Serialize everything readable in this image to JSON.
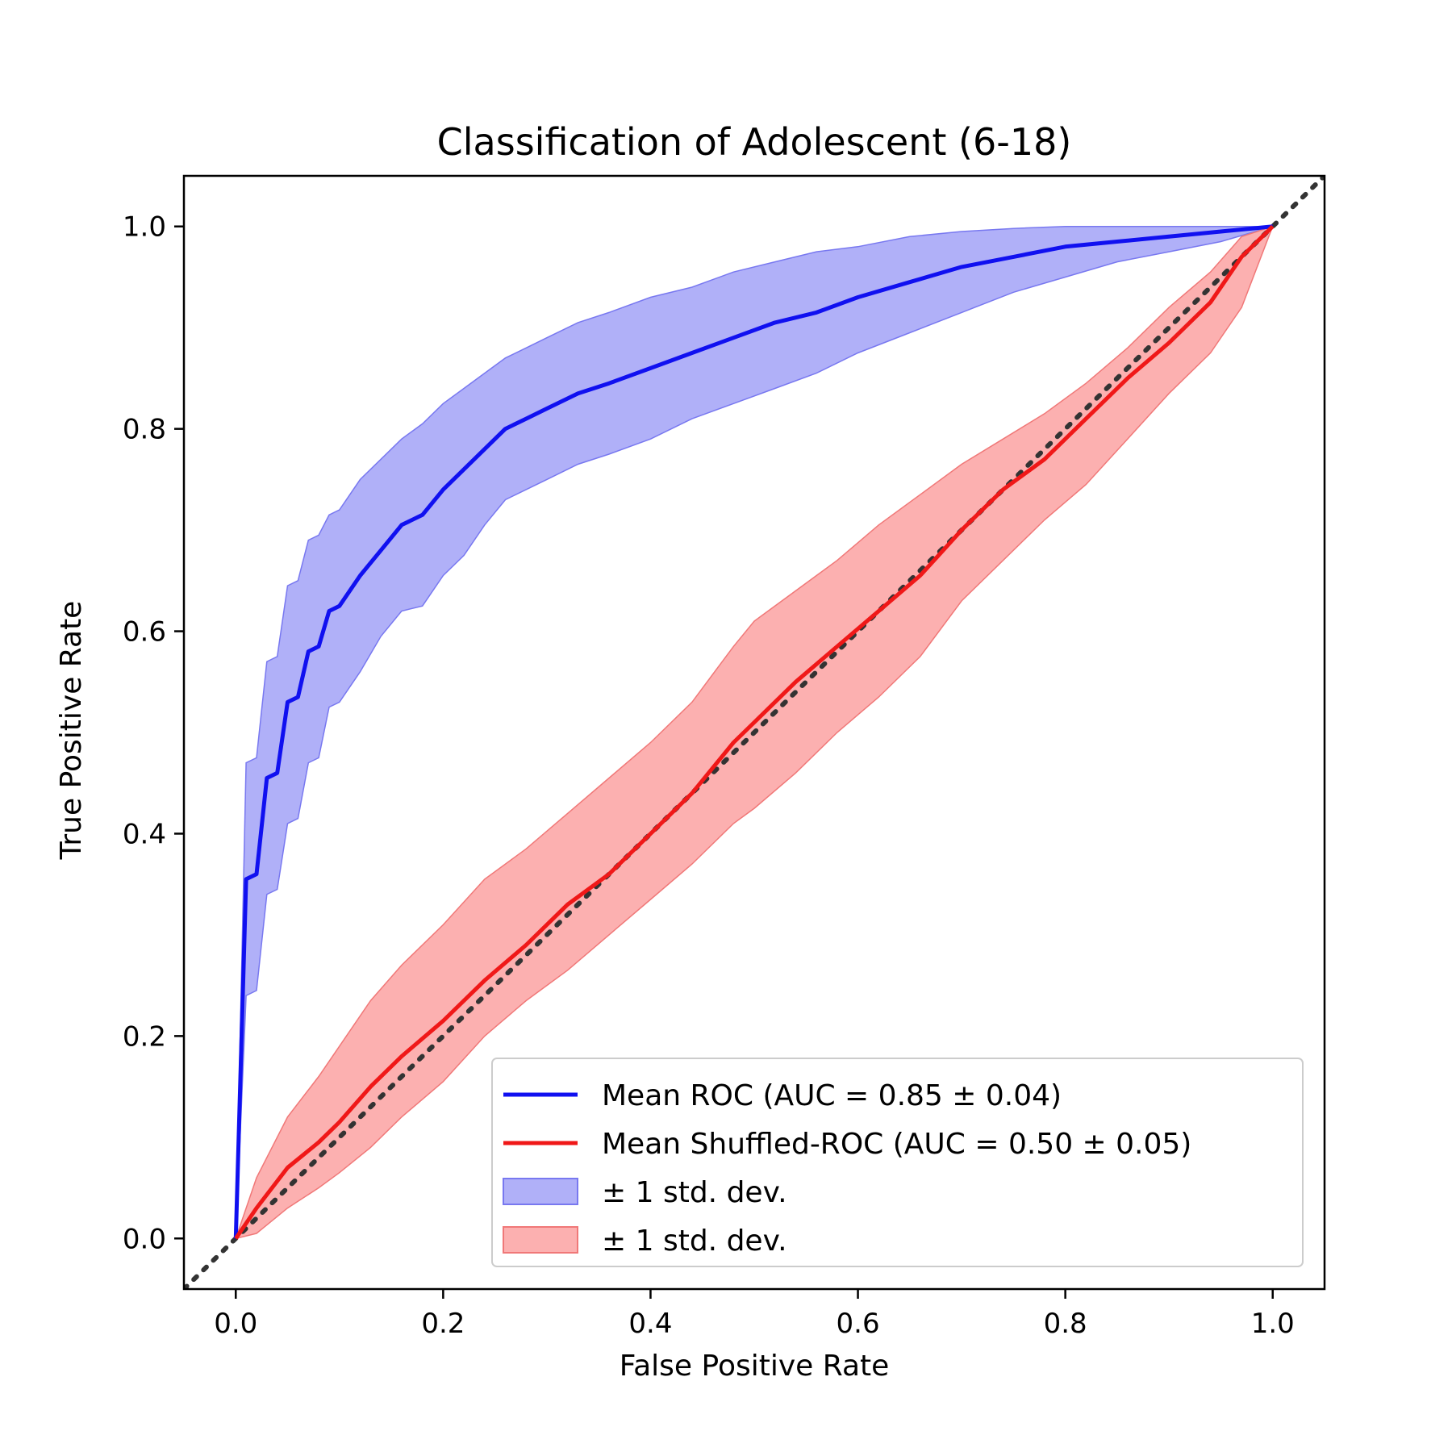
{
  "chart_data": {
    "type": "line",
    "title": "Classification of Adolescent (6-18)",
    "xlabel": "False Positive Rate",
    "ylabel": "True Positive Rate",
    "xlim": [
      -0.05,
      1.05
    ],
    "ylim": [
      -0.05,
      1.05
    ],
    "x_ticks": [
      "0.0",
      "0.2",
      "0.4",
      "0.6",
      "0.8",
      "1.0"
    ],
    "y_ticks": [
      "0.0",
      "0.2",
      "0.4",
      "0.6",
      "0.8",
      "1.0"
    ],
    "grid": false,
    "legend_position": "lower-right",
    "series": [
      {
        "name": "Mean ROC (AUC = 0.85 ± 0.04)",
        "color": "#1010f0",
        "x": [
          0.0,
          0.01,
          0.02,
          0.03,
          0.04,
          0.05,
          0.06,
          0.07,
          0.08,
          0.09,
          0.1,
          0.12,
          0.14,
          0.16,
          0.18,
          0.2,
          0.22,
          0.24,
          0.26,
          0.28,
          0.3,
          0.33,
          0.36,
          0.4,
          0.44,
          0.48,
          0.52,
          0.56,
          0.6,
          0.65,
          0.7,
          0.75,
          0.8,
          0.85,
          0.9,
          0.95,
          1.0
        ],
        "y": [
          0.0,
          0.355,
          0.36,
          0.455,
          0.46,
          0.53,
          0.535,
          0.58,
          0.585,
          0.62,
          0.625,
          0.655,
          0.68,
          0.705,
          0.715,
          0.74,
          0.76,
          0.78,
          0.8,
          0.81,
          0.82,
          0.835,
          0.845,
          0.86,
          0.875,
          0.89,
          0.905,
          0.915,
          0.93,
          0.945,
          0.96,
          0.97,
          0.98,
          0.985,
          0.99,
          0.995,
          1.0
        ],
        "upper": [
          0.0,
          0.47,
          0.475,
          0.57,
          0.575,
          0.645,
          0.65,
          0.69,
          0.695,
          0.715,
          0.72,
          0.75,
          0.77,
          0.79,
          0.805,
          0.825,
          0.84,
          0.855,
          0.87,
          0.88,
          0.89,
          0.905,
          0.915,
          0.93,
          0.94,
          0.955,
          0.965,
          0.975,
          0.98,
          0.99,
          0.995,
          0.998,
          1.0,
          1.0,
          1.0,
          1.0,
          1.0
        ],
        "lower": [
          0.0,
          0.24,
          0.245,
          0.34,
          0.345,
          0.41,
          0.415,
          0.47,
          0.475,
          0.525,
          0.53,
          0.56,
          0.595,
          0.62,
          0.625,
          0.655,
          0.675,
          0.705,
          0.73,
          0.74,
          0.75,
          0.765,
          0.775,
          0.79,
          0.81,
          0.825,
          0.84,
          0.855,
          0.875,
          0.895,
          0.915,
          0.935,
          0.95,
          0.965,
          0.975,
          0.985,
          1.0
        ]
      },
      {
        "name": "Mean Shuffled-ROC (AUC = 0.50 ± 0.05)",
        "color": "#f01818",
        "x": [
          0.0,
          0.02,
          0.05,
          0.08,
          0.1,
          0.13,
          0.16,
          0.2,
          0.24,
          0.28,
          0.32,
          0.36,
          0.4,
          0.44,
          0.48,
          0.5,
          0.54,
          0.58,
          0.62,
          0.66,
          0.7,
          0.74,
          0.78,
          0.82,
          0.86,
          0.9,
          0.94,
          0.97,
          1.0
        ],
        "y": [
          0.0,
          0.03,
          0.07,
          0.095,
          0.115,
          0.15,
          0.18,
          0.215,
          0.255,
          0.29,
          0.33,
          0.36,
          0.4,
          0.44,
          0.49,
          0.51,
          0.55,
          0.585,
          0.62,
          0.655,
          0.7,
          0.74,
          0.77,
          0.81,
          0.85,
          0.885,
          0.925,
          0.97,
          1.0
        ],
        "upper": [
          0.0,
          0.06,
          0.12,
          0.16,
          0.19,
          0.235,
          0.27,
          0.31,
          0.355,
          0.385,
          0.42,
          0.455,
          0.49,
          0.53,
          0.585,
          0.61,
          0.64,
          0.67,
          0.705,
          0.735,
          0.765,
          0.79,
          0.815,
          0.845,
          0.88,
          0.92,
          0.955,
          0.99,
          1.0
        ],
        "lower": [
          0.0,
          0.005,
          0.03,
          0.05,
          0.065,
          0.09,
          0.12,
          0.155,
          0.2,
          0.235,
          0.265,
          0.3,
          0.335,
          0.37,
          0.41,
          0.425,
          0.46,
          0.5,
          0.535,
          0.575,
          0.63,
          0.67,
          0.71,
          0.745,
          0.79,
          0.835,
          0.875,
          0.92,
          1.0
        ]
      }
    ],
    "bands": [
      {
        "name": "± 1 std. dev.",
        "color": "#b0b0f8",
        "edge": "#7878f0"
      },
      {
        "name": "± 1 std. dev.",
        "color": "#fcb0b0",
        "edge": "#f07878"
      }
    ],
    "diagonal": {
      "x": [
        -0.05,
        1.05
      ],
      "y": [
        -0.05,
        1.05
      ],
      "color": "#333333",
      "style": "dotted"
    }
  }
}
